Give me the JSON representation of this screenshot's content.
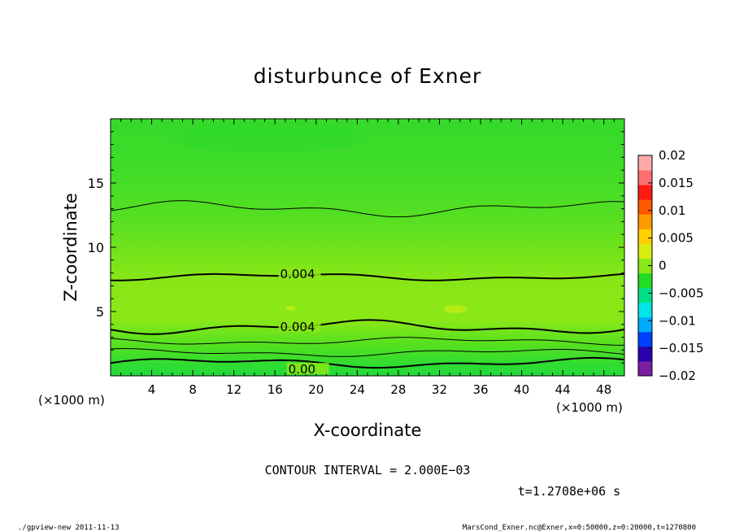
{
  "chart_data": {
    "type": "heatmap",
    "title": "disturbunce of Exner",
    "xlabel": "X-coordinate",
    "ylabel": "Z-coordinate",
    "x_unit_label": "(×1000 m)",
    "y_unit_label": "(×1000 m)",
    "xlim": [
      0,
      50
    ],
    "ylim": [
      0,
      20
    ],
    "x_ticks": [
      4,
      8,
      12,
      16,
      20,
      24,
      28,
      32,
      36,
      40,
      44,
      48
    ],
    "y_ticks": [
      5,
      10,
      15
    ],
    "colorbar": {
      "range": [
        -0.02,
        0.02
      ],
      "tick_values": [
        0.02,
        0.015,
        0.01,
        0.005,
        0,
        -0.005,
        -0.01,
        -0.015,
        -0.02
      ],
      "tick_labels": [
        "0.02",
        "0.015",
        "0.01",
        "0.005",
        "0",
        "−0.005",
        "−0.01",
        "−0.015",
        "−0.02"
      ],
      "colors": [
        "#7a1fa2",
        "#2a00b0",
        "#0040ff",
        "#00aaff",
        "#00e6e6",
        "#00e08a",
        "#22dd22",
        "#8be817",
        "#d9ee10",
        "#ffd000",
        "#ff9a00",
        "#ff5a00",
        "#ff1a10",
        "#ff6f6f",
        "#ffaaaa"
      ]
    },
    "contours": [
      {
        "label": "0.00",
        "z_mean": 1.0,
        "amp": 0.25,
        "label_x": 17.3,
        "label_z": 0.5
      },
      {
        "label": "",
        "z_mean": 1.8,
        "amp": 0.2
      },
      {
        "label": "",
        "z_mean": 2.7,
        "amp": 0.2
      },
      {
        "label": "0.004",
        "z_mean": 3.8,
        "amp": 0.35,
        "label_x": 16.5,
        "label_z": 3.8
      },
      {
        "label": "0.004",
        "z_mean": 7.7,
        "amp": 0.2,
        "label_x": 16.5,
        "label_z": 7.9
      },
      {
        "label": "",
        "z_mean": 13.0,
        "amp": 0.4
      }
    ],
    "contour_interval_text": "CONTOUR INTERVAL = 2.000E−03",
    "time_text": "t=1.2708e+06 s"
  },
  "footer": {
    "left": "./gpview-new   2011-11-13",
    "right": "MarsCond_Exner.nc@Exner,x=0:50000,z=0:20000,t=1270800"
  }
}
